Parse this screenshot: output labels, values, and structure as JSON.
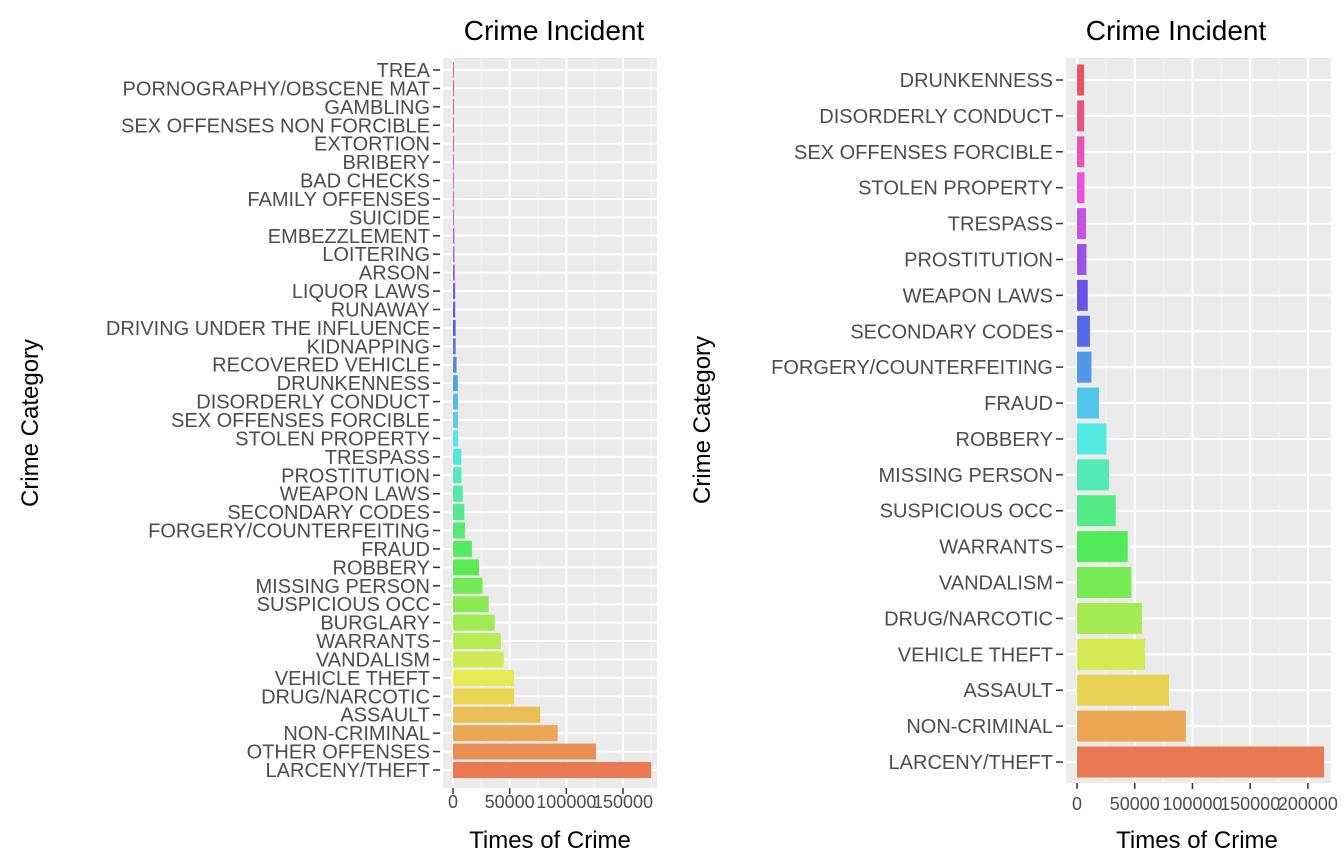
{
  "chart_data": [
    {
      "type": "bar",
      "orientation": "horizontal",
      "title": "Crime Incident",
      "xlabel": "Times of Crime",
      "ylabel": "Crime Category",
      "xlim": [
        0,
        180000
      ],
      "x_ticks": [
        0,
        50000,
        100000,
        150000
      ],
      "grid": true,
      "legend": "none",
      "categories": [
        "LARCENY/THEFT",
        "OTHER OFFENSES",
        "NON-CRIMINAL",
        "ASSAULT",
        "DRUG/NARCOTIC",
        "VEHICLE THEFT",
        "VANDALISM",
        "WARRANTS",
        "BURGLARY",
        "SUSPICIOUS OCC",
        "MISSING PERSON",
        "ROBBERY",
        "FRAUD",
        "FORGERY/COUNTERFEITING",
        "SECONDARY CODES",
        "WEAPON LAWS",
        "PROSTITUTION",
        "TRESPASS",
        "STOLEN PROPERTY",
        "SEX OFFENSES FORCIBLE",
        "DISORDERLY CONDUCT",
        "DRUNKENNESS",
        "RECOVERED VEHICLE",
        "KIDNAPPING",
        "DRIVING UNDER THE INFLUENCE",
        "RUNAWAY",
        "LIQUOR LAWS",
        "ARSON",
        "LOITERING",
        "EMBEZZLEMENT",
        "SUICIDE",
        "FAMILY OFFENSES",
        "BAD CHECKS",
        "BRIBERY",
        "EXTORTION",
        "SEX OFFENSES NON FORCIBLE",
        "GAMBLING",
        "PORNOGRAPHY/OBSCENE MAT",
        "TREA"
      ],
      "values": [
        174900,
        126182,
        92304,
        76876,
        53971,
        53781,
        44725,
        42214,
        36755,
        31414,
        25989,
        23000,
        16679,
        10609,
        9985,
        8555,
        7484,
        7326,
        4540,
        4388,
        4320,
        4280,
        3138,
        2341,
        2268,
        1946,
        1903,
        1513,
        1225,
        1166,
        508,
        491,
        406,
        289,
        256,
        148,
        146,
        22,
        6
      ]
    },
    {
      "type": "bar",
      "orientation": "horizontal",
      "title": "Crime Incident",
      "xlabel": "Times of Crime",
      "ylabel": "Crime Category",
      "xlim": [
        0,
        220000
      ],
      "x_ticks": [
        0,
        50000,
        100000,
        150000,
        200000
      ],
      "grid": true,
      "legend": "none",
      "categories": [
        "LARCENY/THEFT",
        "NON-CRIMINAL",
        "ASSAULT",
        "VEHICLE THEFT",
        "DRUG/NARCOTIC",
        "VANDALISM",
        "WARRANTS",
        "SUSPICIOUS OCC",
        "MISSING PERSON",
        "ROBBERY",
        "FRAUD",
        "FORGERY/COUNTERFEITING",
        "SECONDARY CODES",
        "WEAPON LAWS",
        "PROSTITUTION",
        "TRESPASS",
        "STOLEN PROPERTY",
        "SEX OFFENSES FORCIBLE",
        "DISORDERLY CONDUCT",
        "DRUNKENNESS"
      ],
      "values": [
        214000,
        94300,
        79700,
        59000,
        56200,
        47000,
        44000,
        33500,
        27700,
        25500,
        19000,
        12500,
        11200,
        9300,
        8200,
        7800,
        6500,
        6300,
        6200,
        6100
      ]
    }
  ]
}
